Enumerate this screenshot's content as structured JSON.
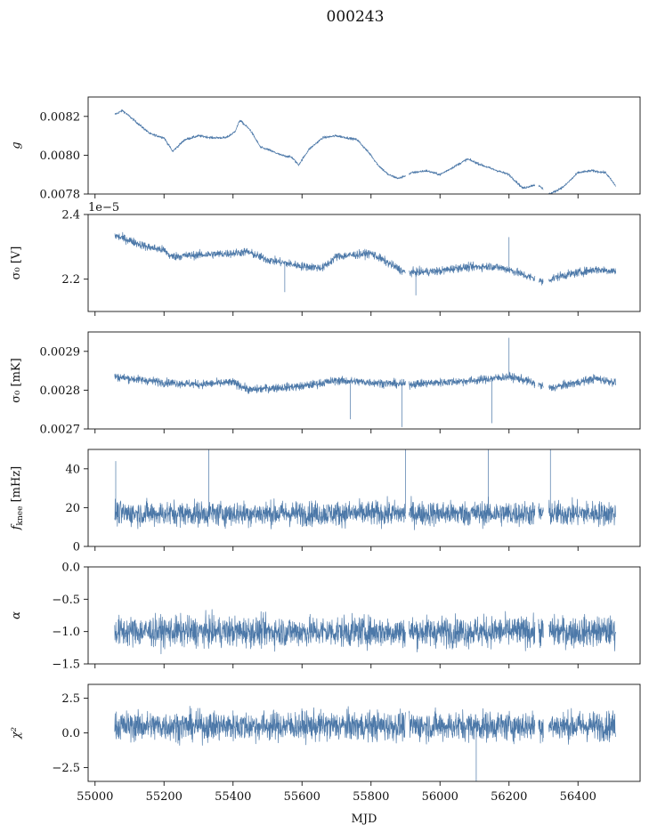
{
  "figure_title": "000243",
  "chart_data": [
    {
      "type": "line",
      "ylabel": "g",
      "ylim": [
        0.0078,
        0.0083
      ],
      "yticks": [
        "0.0078",
        "0.0080",
        "0.0082"
      ],
      "ytick_values": [
        0.0078,
        0.008,
        0.0082
      ],
      "offset_text": "",
      "noise": 6e-06,
      "series": [
        {
          "x": [
            55057,
            55080,
            55120,
            55160,
            55200,
            55225,
            55260,
            55300,
            55340,
            55380,
            55405,
            55420,
            55450,
            55480,
            55500,
            55540,
            55570,
            55590,
            55620,
            55660,
            55700,
            55760,
            55800,
            55820,
            55850,
            55880,
            55920,
            55960,
            56000,
            56040,
            56080,
            56120,
            56150,
            56200,
            56240,
            56280,
            56320,
            56360,
            56400,
            56440,
            56480,
            56510
          ],
          "y": [
            0.00821,
            0.00823,
            0.00817,
            0.00811,
            0.00809,
            0.00802,
            0.00808,
            0.0081,
            0.00809,
            0.00809,
            0.00812,
            0.00818,
            0.00813,
            0.00804,
            0.00803,
            0.008,
            0.00799,
            0.00795,
            0.00803,
            0.00809,
            0.0081,
            0.00808,
            0.008,
            0.00795,
            0.0079,
            0.00788,
            0.00791,
            0.00792,
            0.0079,
            0.00794,
            0.00798,
            0.00795,
            0.00793,
            0.0079,
            0.00783,
            0.00785,
            0.0078,
            0.00784,
            0.00791,
            0.00792,
            0.00791,
            0.00784
          ]
        }
      ]
    },
    {
      "type": "line",
      "ylabel": "σ₀ [V]",
      "ylim": [
        2.1,
        2.4
      ],
      "yticks": [
        "2.2",
        "2.4"
      ],
      "ytick_values": [
        2.2,
        2.4
      ],
      "offset_text": "1e−5",
      "noise": 0.012,
      "series": [
        {
          "x": [
            55057,
            55100,
            55150,
            55200,
            55220,
            55300,
            55400,
            55440,
            55500,
            55600,
            55660,
            55700,
            55800,
            55850,
            55900,
            56000,
            56050,
            56150,
            56200,
            56250,
            56280,
            56300,
            56320,
            56350,
            56400,
            56450,
            56510
          ],
          "y": [
            2.335,
            2.32,
            2.3,
            2.29,
            2.27,
            2.275,
            2.28,
            2.285,
            2.26,
            2.24,
            2.235,
            2.27,
            2.28,
            2.25,
            2.22,
            2.225,
            2.235,
            2.24,
            2.23,
            2.21,
            2.2,
            2.19,
            2.2,
            2.21,
            2.22,
            2.23,
            2.225
          ]
        }
      ],
      "spikes": [
        {
          "x": 56200,
          "y": 2.33
        },
        {
          "x": 55550,
          "y": 2.16
        },
        {
          "x": 55930,
          "y": 2.15
        }
      ]
    },
    {
      "type": "line",
      "ylabel": "σ₀ [mK]",
      "ylim": [
        0.0027,
        0.00295
      ],
      "yticks": [
        "0.0027",
        "0.0028",
        "0.0029"
      ],
      "ytick_values": [
        0.0027,
        0.0028,
        0.0029
      ],
      "offset_text": "",
      "noise": 1e-05,
      "series": [
        {
          "x": [
            55057,
            55100,
            55200,
            55300,
            55400,
            55450,
            55500,
            55600,
            55700,
            55800,
            55900,
            56000,
            56100,
            56150,
            56200,
            56250,
            56280,
            56320,
            56400,
            56450,
            56510
          ],
          "y": [
            0.002835,
            0.00283,
            0.00282,
            0.002815,
            0.00282,
            0.0028,
            0.002805,
            0.00281,
            0.002825,
            0.00282,
            0.002815,
            0.00282,
            0.002825,
            0.00283,
            0.002835,
            0.002825,
            0.002815,
            0.002805,
            0.00282,
            0.00283,
            0.00282
          ]
        }
      ],
      "spikes": [
        {
          "x": 56200,
          "y": 0.002935
        },
        {
          "x": 55890,
          "y": 0.002705
        },
        {
          "x": 55740,
          "y": 0.002725
        },
        {
          "x": 56150,
          "y": 0.002715
        }
      ]
    },
    {
      "type": "line",
      "ylabel": "f_knee [mHz]",
      "ylim": [
        0,
        50
      ],
      "yticks": [
        "0",
        "20",
        "40"
      ],
      "ytick_values": [
        0,
        20,
        40
      ],
      "offset_text": "",
      "noise": 6,
      "series": [
        {
          "x": [
            55057,
            55200,
            55400,
            55600,
            55800,
            56000,
            56200,
            56400,
            56510
          ],
          "y": [
            17,
            17,
            17,
            17,
            17,
            17,
            17,
            17,
            17
          ]
        }
      ],
      "spikes": [
        {
          "x": 55330,
          "y": 50
        },
        {
          "x": 55900,
          "y": 50
        },
        {
          "x": 56140,
          "y": 50
        },
        {
          "x": 56320,
          "y": 50
        },
        {
          "x": 55060,
          "y": 44
        }
      ]
    },
    {
      "type": "line",
      "ylabel": "α",
      "ylim": [
        -1.5,
        0.0
      ],
      "yticks": [
        "−1.5",
        "−1.0",
        "−0.5",
        "0.0"
      ],
      "ytick_values": [
        -1.5,
        -1.0,
        -0.5,
        0.0
      ],
      "offset_text": "",
      "noise": 0.22,
      "series": [
        {
          "x": [
            55057,
            55200,
            55400,
            55600,
            55800,
            56000,
            56200,
            56400,
            56510
          ],
          "y": [
            -1.0,
            -1.0,
            -1.0,
            -1.0,
            -1.0,
            -1.0,
            -1.0,
            -1.0,
            -1.0
          ]
        }
      ]
    },
    {
      "type": "line",
      "ylabel": "χ²",
      "ylim": [
        -3.5,
        3.5
      ],
      "yticks": [
        "−2.5",
        "0.0",
        "2.5"
      ],
      "ytick_values": [
        -2.5,
        0.0,
        2.5
      ],
      "offset_text": "",
      "noise": 1.0,
      "series": [
        {
          "x": [
            55057,
            55200,
            55400,
            55600,
            55800,
            56000,
            56200,
            56400,
            56510
          ],
          "y": [
            0.5,
            0.5,
            0.5,
            0.5,
            0.5,
            0.5,
            0.5,
            0.5,
            0.5
          ]
        }
      ],
      "spikes": [
        {
          "x": 56105,
          "y": -3.5
        }
      ]
    }
  ],
  "xaxis": {
    "xlabel": "MJD",
    "xlim": [
      54980,
      56580
    ],
    "xticks": [
      "55000",
      "55200",
      "55400",
      "55600",
      "55800",
      "56000",
      "56200",
      "56400"
    ],
    "xtick_values": [
      55000,
      55200,
      55400,
      55600,
      55800,
      56000,
      56200,
      56400
    ]
  },
  "data_gaps": [
    [
      55900,
      55910
    ],
    [
      56275,
      56285
    ],
    [
      56300,
      56315
    ]
  ]
}
